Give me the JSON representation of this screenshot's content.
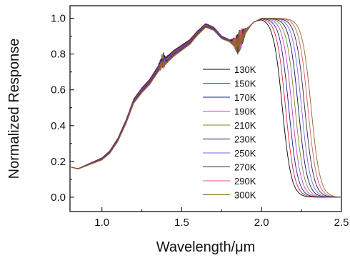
{
  "chart_data": {
    "type": "line",
    "xlabel": "Wavelength/μm",
    "ylabel": "Normalized Response",
    "xlim": [
      0.8,
      2.5
    ],
    "ylim": [
      -0.08,
      1.07
    ],
    "xticks": [
      1.0,
      1.5,
      2.0,
      2.5
    ],
    "xtick_labels": [
      "1.0",
      "1.5",
      "2.0",
      "2.5"
    ],
    "yticks": [
      0.0,
      0.2,
      0.4,
      0.6,
      0.8,
      1.0
    ],
    "ytick_labels": [
      "0.0",
      "0.2",
      "0.4",
      "0.6",
      "0.8",
      "1.0"
    ],
    "grid": false,
    "legend_position": "center-right",
    "base_curve": {
      "x": [
        0.8,
        0.85,
        0.9,
        0.95,
        1.0,
        1.05,
        1.1,
        1.15,
        1.2,
        1.25,
        1.3,
        1.35,
        1.38,
        1.4,
        1.45,
        1.5,
        1.55,
        1.6,
        1.65,
        1.7,
        1.75,
        1.8,
        1.85,
        1.9,
        1.95,
        2.0,
        2.05
      ],
      "y": [
        0.17,
        0.16,
        0.18,
        0.2,
        0.22,
        0.26,
        0.33,
        0.43,
        0.55,
        0.61,
        0.66,
        0.73,
        0.78,
        0.78,
        0.82,
        0.85,
        0.88,
        0.93,
        0.97,
        0.95,
        0.9,
        0.88,
        0.86,
        0.93,
        0.98,
        1.0,
        1.0
      ]
    },
    "series": [
      {
        "name": "130K",
        "color": "#000000",
        "shift": 0.0,
        "cutoff": 2.13
      },
      {
        "name": "150K",
        "color": "#d0203a",
        "shift": -0.004,
        "cutoff": 2.15
      },
      {
        "name": "170K",
        "color": "#1a1a8c",
        "shift": -0.008,
        "cutoff": 2.17
      },
      {
        "name": "190K",
        "color": "#c040c0",
        "shift": -0.012,
        "cutoff": 2.19
      },
      {
        "name": "210K",
        "color": "#7a8a2a",
        "shift": -0.016,
        "cutoff": 2.21
      },
      {
        "name": "230K",
        "color": "#101060",
        "shift": -0.02,
        "cutoff": 2.23
      },
      {
        "name": "250K",
        "color": "#8060e0",
        "shift": -0.024,
        "cutoff": 2.25
      },
      {
        "name": "270K",
        "color": "#2a2a2a",
        "shift": -0.028,
        "cutoff": 2.27
      },
      {
        "name": "290K",
        "color": "#e05070",
        "shift": -0.032,
        "cutoff": 2.29
      },
      {
        "name": "300K",
        "color": "#8a6a20",
        "shift": -0.036,
        "cutoff": 2.31
      }
    ]
  }
}
